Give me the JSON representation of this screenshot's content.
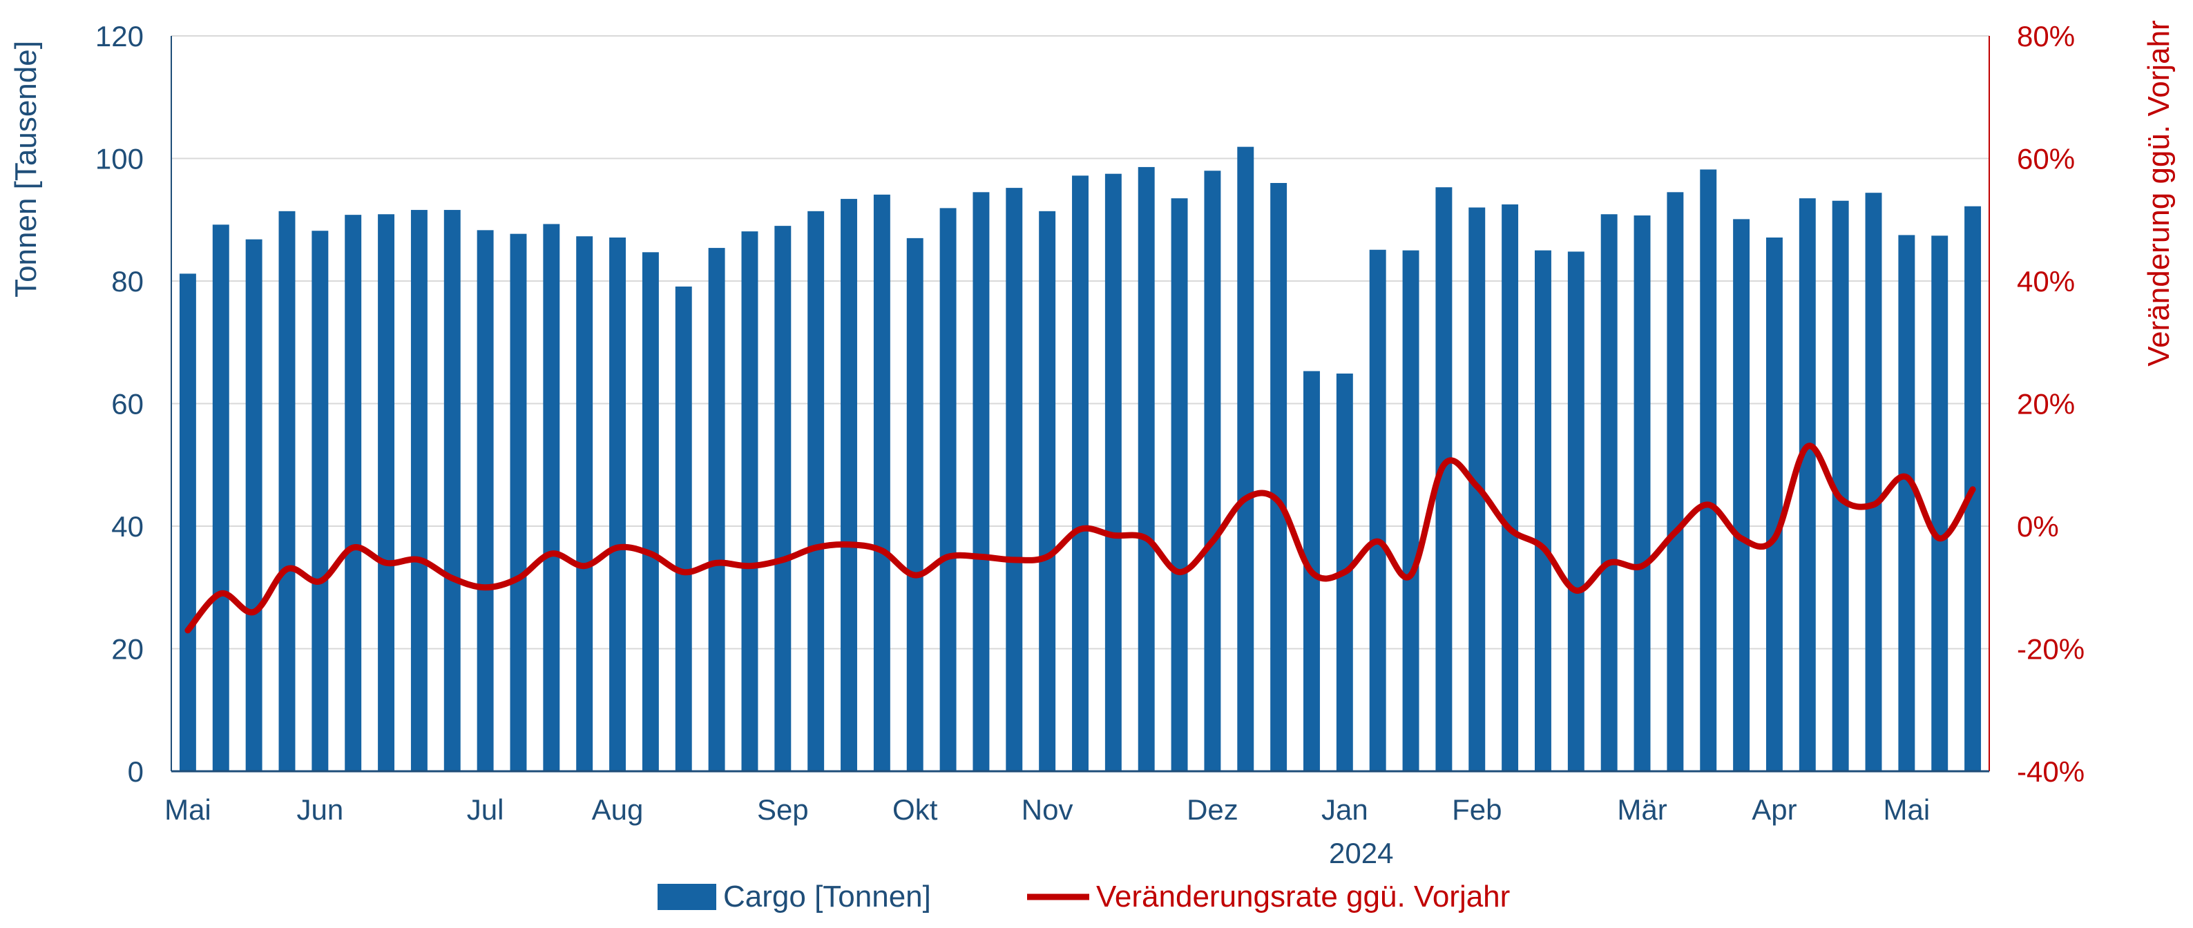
{
  "chart_data": {
    "type": "bar+line",
    "colors": {
      "bars": "#1563a3",
      "line": "#c00000",
      "left_axis": "#1f4e79",
      "right_axis": "#c00000",
      "grid": "#d9d9d9"
    },
    "left_axis": {
      "label": "Tonnen [Tausende]",
      "ylim": [
        0,
        120
      ],
      "ticks": [
        "0",
        "20",
        "40",
        "60",
        "80",
        "100",
        "120"
      ]
    },
    "right_axis": {
      "label": "Veränderung ggü. Vorjahr",
      "ylim": [
        -40,
        80
      ],
      "ticks": [
        "-40%",
        "-20%",
        "0%",
        "20%",
        "40%",
        "60%",
        "80%"
      ]
    },
    "grid": true,
    "x_month_labels": [
      {
        "label": "Mai",
        "index": 0
      },
      {
        "label": "Jun",
        "index": 4
      },
      {
        "label": "Jul",
        "index": 9
      },
      {
        "label": "Aug",
        "index": 13
      },
      {
        "label": "Sep",
        "index": 18
      },
      {
        "label": "Okt",
        "index": 22
      },
      {
        "label": "Nov",
        "index": 26
      },
      {
        "label": "Dez",
        "index": 31
      },
      {
        "label": "Jan",
        "index": 35
      },
      {
        "label": "Feb",
        "index": 39
      },
      {
        "label": "Mär",
        "index": 44
      },
      {
        "label": "Apr",
        "index": 48
      },
      {
        "label": "Mai",
        "index": 52
      }
    ],
    "year_label": {
      "label": "2024",
      "index": 35.5
    },
    "series": [
      {
        "name": "Cargo [Tonnen]",
        "kind": "bar",
        "axis": "left",
        "values": [
          81.2,
          89.2,
          86.8,
          91.4,
          88.2,
          90.8,
          90.9,
          91.6,
          91.6,
          88.3,
          87.7,
          89.3,
          87.3,
          87.1,
          84.7,
          79.1,
          85.4,
          88.1,
          89.0,
          91.4,
          93.4,
          94.1,
          87.0,
          91.9,
          94.5,
          95.2,
          91.4,
          97.2,
          97.5,
          98.6,
          93.5,
          98.0,
          101.9,
          96.0,
          65.3,
          64.9,
          85.1,
          85.0,
          95.3,
          92.0,
          92.5,
          85.0,
          84.8,
          90.9,
          90.7,
          94.5,
          98.2,
          90.1,
          87.1,
          93.5,
          93.1,
          94.4,
          87.5,
          87.4,
          92.2
        ]
      },
      {
        "name": "Veränderungsrate ggü. Vorjahr",
        "kind": "line",
        "axis": "right",
        "values": [
          -17,
          -11,
          -14,
          -7,
          -9,
          -3.5,
          -6,
          -5.5,
          -8.5,
          -10,
          -8.5,
          -4.5,
          -6.5,
          -3.5,
          -4.5,
          -7.5,
          -6,
          -6.5,
          -5.5,
          -3.5,
          -3,
          -4,
          -8,
          -5,
          -5,
          -5.5,
          -5,
          -0.5,
          -1.5,
          -2,
          -7.5,
          -2.5,
          4.5,
          4,
          -7.5,
          -7.5,
          -2.5,
          -8,
          10,
          6.5,
          -0.5,
          -3.5,
          -10.5,
          -6,
          -6.5,
          -1,
          3.5,
          -2,
          -2,
          13,
          4.5,
          3.5,
          8,
          -2,
          6
        ]
      }
    ],
    "legend": {
      "position": "bottom-center"
    }
  }
}
